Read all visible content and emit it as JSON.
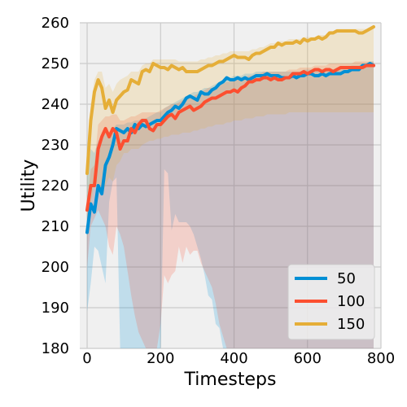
{
  "chart_data": {
    "type": "line",
    "xlabel": "Timesteps",
    "ylabel": "Utility",
    "xlim": [
      -20,
      800
    ],
    "ylim": [
      180,
      260
    ],
    "xticks": [
      0,
      200,
      400,
      600,
      800
    ],
    "yticks": [
      180,
      190,
      200,
      210,
      220,
      230,
      240,
      250,
      260
    ],
    "grid": true,
    "legend_position": "lower-right",
    "series": [
      {
        "name": "50",
        "color": "#008fd5",
        "x": [
          0,
          10,
          20,
          30,
          40,
          50,
          60,
          70,
          80,
          90,
          100,
          110,
          120,
          130,
          140,
          150,
          160,
          170,
          180,
          190,
          200,
          210,
          220,
          230,
          240,
          250,
          260,
          270,
          280,
          290,
          300,
          310,
          320,
          330,
          340,
          350,
          360,
          370,
          380,
          390,
          400,
          410,
          420,
          430,
          440,
          450,
          460,
          470,
          480,
          490,
          500,
          510,
          520,
          530,
          540,
          550,
          560,
          570,
          580,
          590,
          600,
          610,
          620,
          630,
          640,
          650,
          660,
          670,
          680,
          690,
          700,
          710,
          720,
          730,
          740,
          750,
          760,
          770,
          780
        ],
        "y": [
          208.5,
          215.5,
          213.5,
          220,
          218,
          225,
          227,
          230,
          234,
          233.5,
          233,
          234,
          233,
          235,
          234,
          235,
          234.5,
          235,
          235.5,
          236,
          236,
          237,
          238,
          238.5,
          239.5,
          239,
          240,
          241.5,
          242,
          241.5,
          241,
          243,
          242.5,
          242.5,
          243.5,
          244,
          245,
          245.5,
          246.5,
          246,
          246,
          246.5,
          246,
          246.5,
          246,
          246.5,
          247,
          247,
          247,
          247.5,
          247,
          247,
          247,
          246.5,
          246.5,
          246.5,
          247,
          246.5,
          247,
          247,
          247.5,
          247.5,
          247,
          247,
          247.5,
          247,
          247.5,
          247.5,
          247.5,
          247.5,
          248,
          248,
          248.5,
          248.5,
          248.5,
          249.5,
          249.5,
          250,
          249.5
        ],
        "upper": [
          222,
          229,
          228,
          231,
          232,
          233,
          233,
          234,
          235,
          235,
          235,
          235.5,
          235.5,
          236,
          236,
          236.5,
          236.5,
          237,
          237.5,
          238,
          238,
          239,
          239.5,
          240,
          240.5,
          241,
          241.5,
          242,
          242.5,
          243,
          243,
          243.5,
          244,
          244,
          244.5,
          245,
          245.5,
          246,
          246.5,
          246.5,
          247,
          247,
          247,
          247.5,
          247.5,
          247.5,
          248,
          248,
          248,
          248,
          248,
          248,
          248,
          248,
          248,
          248,
          248,
          248,
          248,
          248.5,
          248.5,
          248.5,
          248.5,
          248.5,
          248.5,
          248.5,
          248.5,
          248.5,
          249,
          249,
          249,
          249,
          249.5,
          249.5,
          249.5,
          250,
          250,
          250.5,
          250.5
        ],
        "lower": [
          189,
          196,
          205,
          204,
          200,
          196,
          216,
          221,
          222,
          180,
          180,
          180,
          180,
          180,
          180,
          180,
          180,
          180,
          180,
          180,
          180,
          224,
          223,
          209,
          213,
          211,
          211,
          211,
          210,
          208,
          205,
          202,
          198,
          193,
          192,
          186,
          185,
          180,
          180,
          180,
          180,
          180,
          180,
          180,
          180,
          180,
          180,
          180,
          180,
          180,
          180,
          180,
          180,
          180,
          180,
          180,
          180,
          180,
          180,
          180,
          180,
          180,
          180,
          180,
          180,
          180,
          180,
          180,
          180,
          180,
          180,
          180,
          180,
          180,
          180,
          180,
          180,
          180,
          180
        ]
      },
      {
        "name": "100",
        "color": "#fc4f30",
        "x": [
          0,
          10,
          20,
          30,
          40,
          50,
          60,
          70,
          80,
          90,
          100,
          110,
          120,
          130,
          140,
          150,
          160,
          170,
          180,
          190,
          200,
          210,
          220,
          230,
          240,
          250,
          260,
          270,
          280,
          290,
          300,
          310,
          320,
          330,
          340,
          350,
          360,
          370,
          380,
          390,
          400,
          410,
          420,
          430,
          440,
          450,
          460,
          470,
          480,
          490,
          500,
          510,
          520,
          530,
          540,
          550,
          560,
          570,
          580,
          590,
          600,
          610,
          620,
          630,
          640,
          650,
          660,
          670,
          680,
          690,
          700,
          710,
          720,
          730,
          740,
          750,
          760,
          770,
          780
        ],
        "y": [
          214,
          220,
          220,
          229,
          232,
          234,
          232,
          234,
          233,
          229,
          231,
          231,
          234,
          233,
          235,
          236,
          236,
          234,
          233.5,
          235,
          235,
          236,
          237,
          237.5,
          236.5,
          238,
          238.5,
          239,
          239.5,
          238.5,
          239,
          239.5,
          240.5,
          241,
          241.5,
          241.5,
          242,
          242.5,
          243,
          243,
          243.5,
          243,
          244,
          244.5,
          245.5,
          245.5,
          246,
          246,
          246.5,
          246.5,
          246,
          246.5,
          246,
          246,
          246.5,
          246.5,
          247.5,
          247.5,
          247.5,
          248,
          247.5,
          248,
          248.5,
          248.5,
          248,
          248.5,
          248.5,
          248,
          248.5,
          249,
          249,
          249,
          249,
          249,
          249,
          249,
          249.5,
          249.5,
          249.5
        ],
        "upper": [
          216,
          224,
          225,
          235,
          236,
          237,
          237,
          237.5,
          237.5,
          236,
          236,
          236.5,
          237,
          237,
          237.5,
          238,
          238,
          238,
          238,
          238,
          238.5,
          239,
          239.5,
          240,
          240,
          240.5,
          241,
          241.5,
          242,
          242,
          242.5,
          243,
          243.5,
          244,
          244,
          244.5,
          245,
          245,
          245.5,
          245.5,
          246,
          246,
          246.5,
          246.5,
          247,
          247,
          247.5,
          247.5,
          248,
          248,
          248,
          248,
          248,
          248,
          248,
          248.5,
          248.5,
          248.5,
          249,
          249,
          249,
          249,
          249.5,
          249.5,
          249.5,
          249.5,
          250,
          250,
          250,
          250,
          250,
          250,
          250,
          250.5,
          250.5,
          250.5,
          250.5,
          250.5,
          250.5
        ],
        "lower": [
          200,
          210,
          212,
          214,
          212,
          210,
          205,
          203,
          210,
          208,
          205,
          199,
          193,
          188,
          184,
          182,
          180,
          180,
          180,
          180,
          186,
          198,
          196,
          198,
          199,
          205,
          201,
          205,
          203,
          204,
          204,
          201,
          199,
          197,
          195,
          191,
          186,
          183,
          180,
          180,
          180,
          180,
          180,
          180,
          180,
          180,
          180,
          180,
          180,
          180,
          180,
          180,
          180,
          180,
          180,
          180,
          180,
          180,
          180,
          180,
          180,
          180,
          180,
          180,
          180,
          180,
          180,
          180,
          180,
          180,
          180,
          180,
          180,
          180,
          180,
          180,
          180,
          180,
          180
        ]
      },
      {
        "name": "150",
        "color": "#e5ae38",
        "x": [
          0,
          10,
          20,
          30,
          40,
          50,
          60,
          70,
          80,
          90,
          100,
          110,
          120,
          130,
          140,
          150,
          160,
          170,
          180,
          190,
          200,
          210,
          220,
          230,
          240,
          250,
          260,
          270,
          280,
          290,
          300,
          310,
          320,
          330,
          340,
          350,
          360,
          370,
          380,
          390,
          400,
          410,
          420,
          430,
          440,
          450,
          460,
          470,
          480,
          490,
          500,
          510,
          520,
          530,
          540,
          550,
          560,
          570,
          580,
          590,
          600,
          610,
          620,
          630,
          640,
          650,
          660,
          670,
          680,
          690,
          700,
          710,
          720,
          730,
          740,
          750,
          760,
          770,
          780
        ],
        "y": [
          223,
          236,
          243,
          246,
          244,
          239,
          241,
          238,
          241,
          242,
          243,
          243.5,
          246,
          245.5,
          245,
          248,
          248.5,
          248,
          250,
          249.5,
          249,
          249,
          248.5,
          249.5,
          249,
          248.5,
          249,
          248,
          248,
          248,
          248,
          248.5,
          249,
          249.5,
          249.5,
          250,
          250.5,
          250.5,
          251,
          251.5,
          252,
          251.5,
          251.5,
          251.5,
          251,
          252,
          252.5,
          252.5,
          253,
          253.5,
          254,
          254,
          255,
          254.5,
          255,
          255,
          255,
          255.5,
          255,
          256,
          255.5,
          256,
          256,
          256.5,
          256,
          256.5,
          257.5,
          257.5,
          258,
          258,
          258,
          258,
          258,
          258,
          257.5,
          257.5,
          258,
          258.5,
          259
        ],
        "upper": [
          226,
          240,
          246,
          248,
          248,
          244,
          245,
          243,
          245,
          246,
          246.5,
          247,
          248,
          248,
          248,
          249.5,
          250,
          250,
          251,
          251,
          251,
          251,
          251,
          251,
          251,
          250.5,
          250.5,
          250.5,
          250.5,
          250.5,
          250.5,
          251,
          251,
          251.5,
          251.5,
          252,
          252,
          252.5,
          252.5,
          253,
          253,
          253,
          253,
          253,
          253,
          253.5,
          253.5,
          254,
          254,
          254.5,
          255,
          255,
          255.5,
          255.5,
          255.5,
          256,
          256,
          256,
          256,
          256.5,
          256.5,
          256.5,
          256.5,
          257,
          257,
          257,
          258,
          258,
          258.5,
          258.5,
          258.5,
          258.5,
          258.5,
          258.5,
          258.5,
          258.5,
          258.5,
          259,
          259.5
        ],
        "lower": [
          207,
          215,
          221,
          220,
          218,
          220,
          222,
          221,
          225,
          226,
          228,
          228,
          229,
          229,
          229,
          230,
          230.5,
          231,
          231,
          231.5,
          231.5,
          232,
          232,
          232.5,
          232.5,
          232.5,
          233,
          233,
          233,
          233.5,
          233.5,
          234,
          234,
          234.5,
          234.5,
          235,
          235,
          235,
          235.5,
          235.5,
          236,
          236,
          236,
          236.5,
          236.5,
          236.5,
          237,
          237,
          237,
          237.5,
          237.5,
          237.5,
          237.5,
          237.5,
          237.5,
          238,
          238,
          238,
          238,
          238,
          238,
          238,
          238,
          238,
          238,
          238,
          238,
          238,
          238,
          238,
          238,
          238,
          238,
          238,
          238,
          238,
          238,
          238,
          238
        ]
      }
    ]
  }
}
